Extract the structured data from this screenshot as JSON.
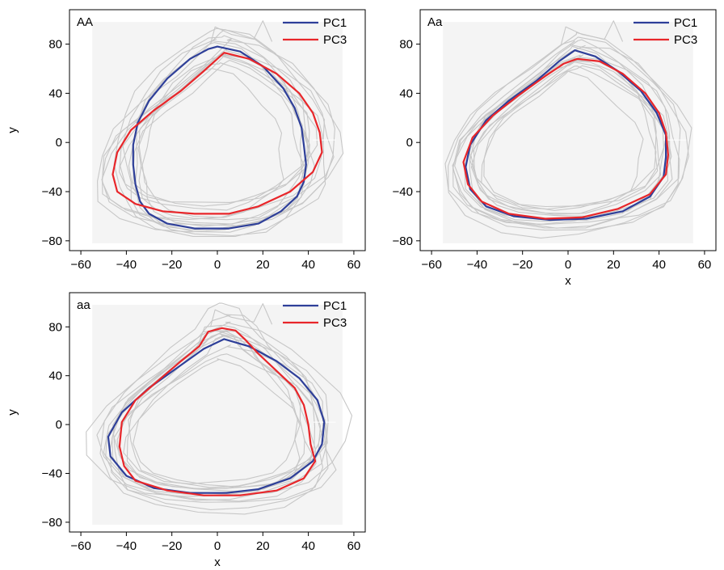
{
  "chart_data": [
    {
      "type": "line",
      "panel_label": "AA",
      "xlabel": "",
      "ylabel": "y",
      "xlim": [
        -65,
        65
      ],
      "ylim": [
        -88,
        108
      ],
      "xticks": [
        -60,
        -40,
        -20,
        0,
        20,
        40,
        60
      ],
      "yticks": [
        -80,
        -40,
        0,
        40,
        80
      ],
      "xticklabels": [
        "−60",
        "−40",
        "−20",
        "0",
        "20",
        "40",
        "60"
      ],
      "yticklabels": [
        "−80",
        "−40",
        "0",
        "40",
        "80"
      ],
      "legend": "top-right",
      "series": [
        {
          "name": "PC1",
          "color": "#2e3f99",
          "points": [
            [
              0,
              78
            ],
            [
              10,
              74
            ],
            [
              20,
              62
            ],
            [
              29,
              44
            ],
            [
              34,
              28
            ],
            [
              37,
              12
            ],
            [
              38,
              -2
            ],
            [
              39,
              -18
            ],
            [
              38,
              -32
            ],
            [
              35,
              -44
            ],
            [
              28,
              -56
            ],
            [
              18,
              -66
            ],
            [
              5,
              -70
            ],
            [
              -10,
              -70
            ],
            [
              -22,
              -66
            ],
            [
              -30,
              -58
            ],
            [
              -34,
              -48
            ],
            [
              -36,
              -34
            ],
            [
              -37,
              -18
            ],
            [
              -37,
              -2
            ],
            [
              -35,
              16
            ],
            [
              -30,
              34
            ],
            [
              -22,
              52
            ],
            [
              -12,
              68
            ],
            [
              -4,
              76
            ],
            [
              0,
              78
            ]
          ]
        },
        {
          "name": "PC3",
          "color": "#e8262a",
          "points": [
            [
              3,
              73
            ],
            [
              14,
              68
            ],
            [
              26,
              56
            ],
            [
              36,
              40
            ],
            [
              42,
              24
            ],
            [
              45,
              8
            ],
            [
              46,
              -8
            ],
            [
              42,
              -24
            ],
            [
              32,
              -40
            ],
            [
              18,
              -52
            ],
            [
              5,
              -58
            ],
            [
              -10,
              -58
            ],
            [
              -24,
              -56
            ],
            [
              -36,
              -50
            ],
            [
              -44,
              -40
            ],
            [
              -46,
              -26
            ],
            [
              -44,
              -8
            ],
            [
              -38,
              10
            ],
            [
              -28,
              26
            ],
            [
              -16,
              42
            ],
            [
              -6,
              58
            ],
            [
              3,
              73
            ]
          ]
        }
      ],
      "background_trajectories": {
        "color": "#c7c7c7",
        "count": 14
      }
    },
    {
      "type": "line",
      "panel_label": "Aa",
      "xlabel": "x",
      "ylabel": "",
      "xlim": [
        -65,
        65
      ],
      "ylim": [
        -88,
        108
      ],
      "xticks": [
        -60,
        -40,
        -20,
        0,
        20,
        40,
        60
      ],
      "yticks": [
        -80,
        -40,
        0,
        40,
        80
      ],
      "xticklabels": [
        "−60",
        "−40",
        "−20",
        "0",
        "20",
        "40",
        "60"
      ],
      "yticklabels": [
        "−80",
        "−40",
        "0",
        "40",
        "80"
      ],
      "legend": "top-right",
      "series": [
        {
          "name": "PC1",
          "color": "#2e3f99",
          "points": [
            [
              3,
              75
            ],
            [
              12,
              70
            ],
            [
              22,
              58
            ],
            [
              32,
              42
            ],
            [
              39,
              24
            ],
            [
              43,
              6
            ],
            [
              43,
              -12
            ],
            [
              42,
              -28
            ],
            [
              36,
              -44
            ],
            [
              24,
              -56
            ],
            [
              8,
              -62
            ],
            [
              -8,
              -63
            ],
            [
              -24,
              -60
            ],
            [
              -36,
              -52
            ],
            [
              -43,
              -38
            ],
            [
              -45,
              -20
            ],
            [
              -43,
              -2
            ],
            [
              -36,
              18
            ],
            [
              -26,
              34
            ],
            [
              -14,
              50
            ],
            [
              -4,
              66
            ],
            [
              3,
              75
            ]
          ]
        },
        {
          "name": "PC3",
          "color": "#e8262a",
          "points": [
            [
              4,
              68
            ],
            [
              14,
              66
            ],
            [
              24,
              56
            ],
            [
              34,
              40
            ],
            [
              40,
              24
            ],
            [
              43,
              8
            ],
            [
              44,
              -10
            ],
            [
              43,
              -26
            ],
            [
              36,
              -42
            ],
            [
              22,
              -54
            ],
            [
              6,
              -61
            ],
            [
              -10,
              -62
            ],
            [
              -26,
              -58
            ],
            [
              -38,
              -48
            ],
            [
              -44,
              -34
            ],
            [
              -46,
              -16
            ],
            [
              -42,
              4
            ],
            [
              -33,
              22
            ],
            [
              -22,
              38
            ],
            [
              -10,
              54
            ],
            [
              -2,
              64
            ],
            [
              4,
              68
            ]
          ]
        }
      ],
      "background_trajectories": {
        "color": "#c7c7c7",
        "count": 14
      }
    },
    {
      "type": "line",
      "panel_label": "aa",
      "xlabel": "x",
      "ylabel": "y",
      "xlim": [
        -65,
        65
      ],
      "ylim": [
        -88,
        108
      ],
      "xticks": [
        -60,
        -40,
        -20,
        0,
        20,
        40,
        60
      ],
      "yticks": [
        -80,
        -40,
        0,
        40,
        80
      ],
      "xticklabels": [
        "−60",
        "−40",
        "−20",
        "0",
        "20",
        "40",
        "60"
      ],
      "yticklabels": [
        "−80",
        "−40",
        "0",
        "40",
        "80"
      ],
      "legend": "top-right",
      "series": [
        {
          "name": "PC1",
          "color": "#2e3f99",
          "points": [
            [
              3,
              70
            ],
            [
              14,
              64
            ],
            [
              26,
              52
            ],
            [
              36,
              38
            ],
            [
              44,
              20
            ],
            [
              47,
              2
            ],
            [
              46,
              -16
            ],
            [
              42,
              -30
            ],
            [
              32,
              -44
            ],
            [
              18,
              -53
            ],
            [
              4,
              -56
            ],
            [
              -12,
              -56
            ],
            [
              -28,
              -52
            ],
            [
              -40,
              -42
            ],
            [
              -47,
              -26
            ],
            [
              -48,
              -10
            ],
            [
              -42,
              10
            ],
            [
              -30,
              30
            ],
            [
              -18,
              46
            ],
            [
              -6,
              62
            ],
            [
              3,
              70
            ]
          ]
        },
        {
          "name": "PC3",
          "color": "#e8262a",
          "points": [
            [
              2,
              79
            ],
            [
              8,
              77
            ],
            [
              12,
              70
            ],
            [
              18,
              58
            ],
            [
              26,
              44
            ],
            [
              34,
              30
            ],
            [
              38,
              16
            ],
            [
              40,
              0
            ],
            [
              41,
              -16
            ],
            [
              43,
              -30
            ],
            [
              38,
              -44
            ],
            [
              26,
              -54
            ],
            [
              10,
              -58
            ],
            [
              -6,
              -58
            ],
            [
              -22,
              -54
            ],
            [
              -36,
              -46
            ],
            [
              -41,
              -34
            ],
            [
              -43,
              -18
            ],
            [
              -42,
              2
            ],
            [
              -36,
              20
            ],
            [
              -26,
              36
            ],
            [
              -16,
              52
            ],
            [
              -8,
              64
            ],
            [
              -4,
              76
            ],
            [
              2,
              79
            ]
          ]
        }
      ],
      "background_trajectories": {
        "color": "#c7c7c7",
        "count": 14
      }
    }
  ]
}
